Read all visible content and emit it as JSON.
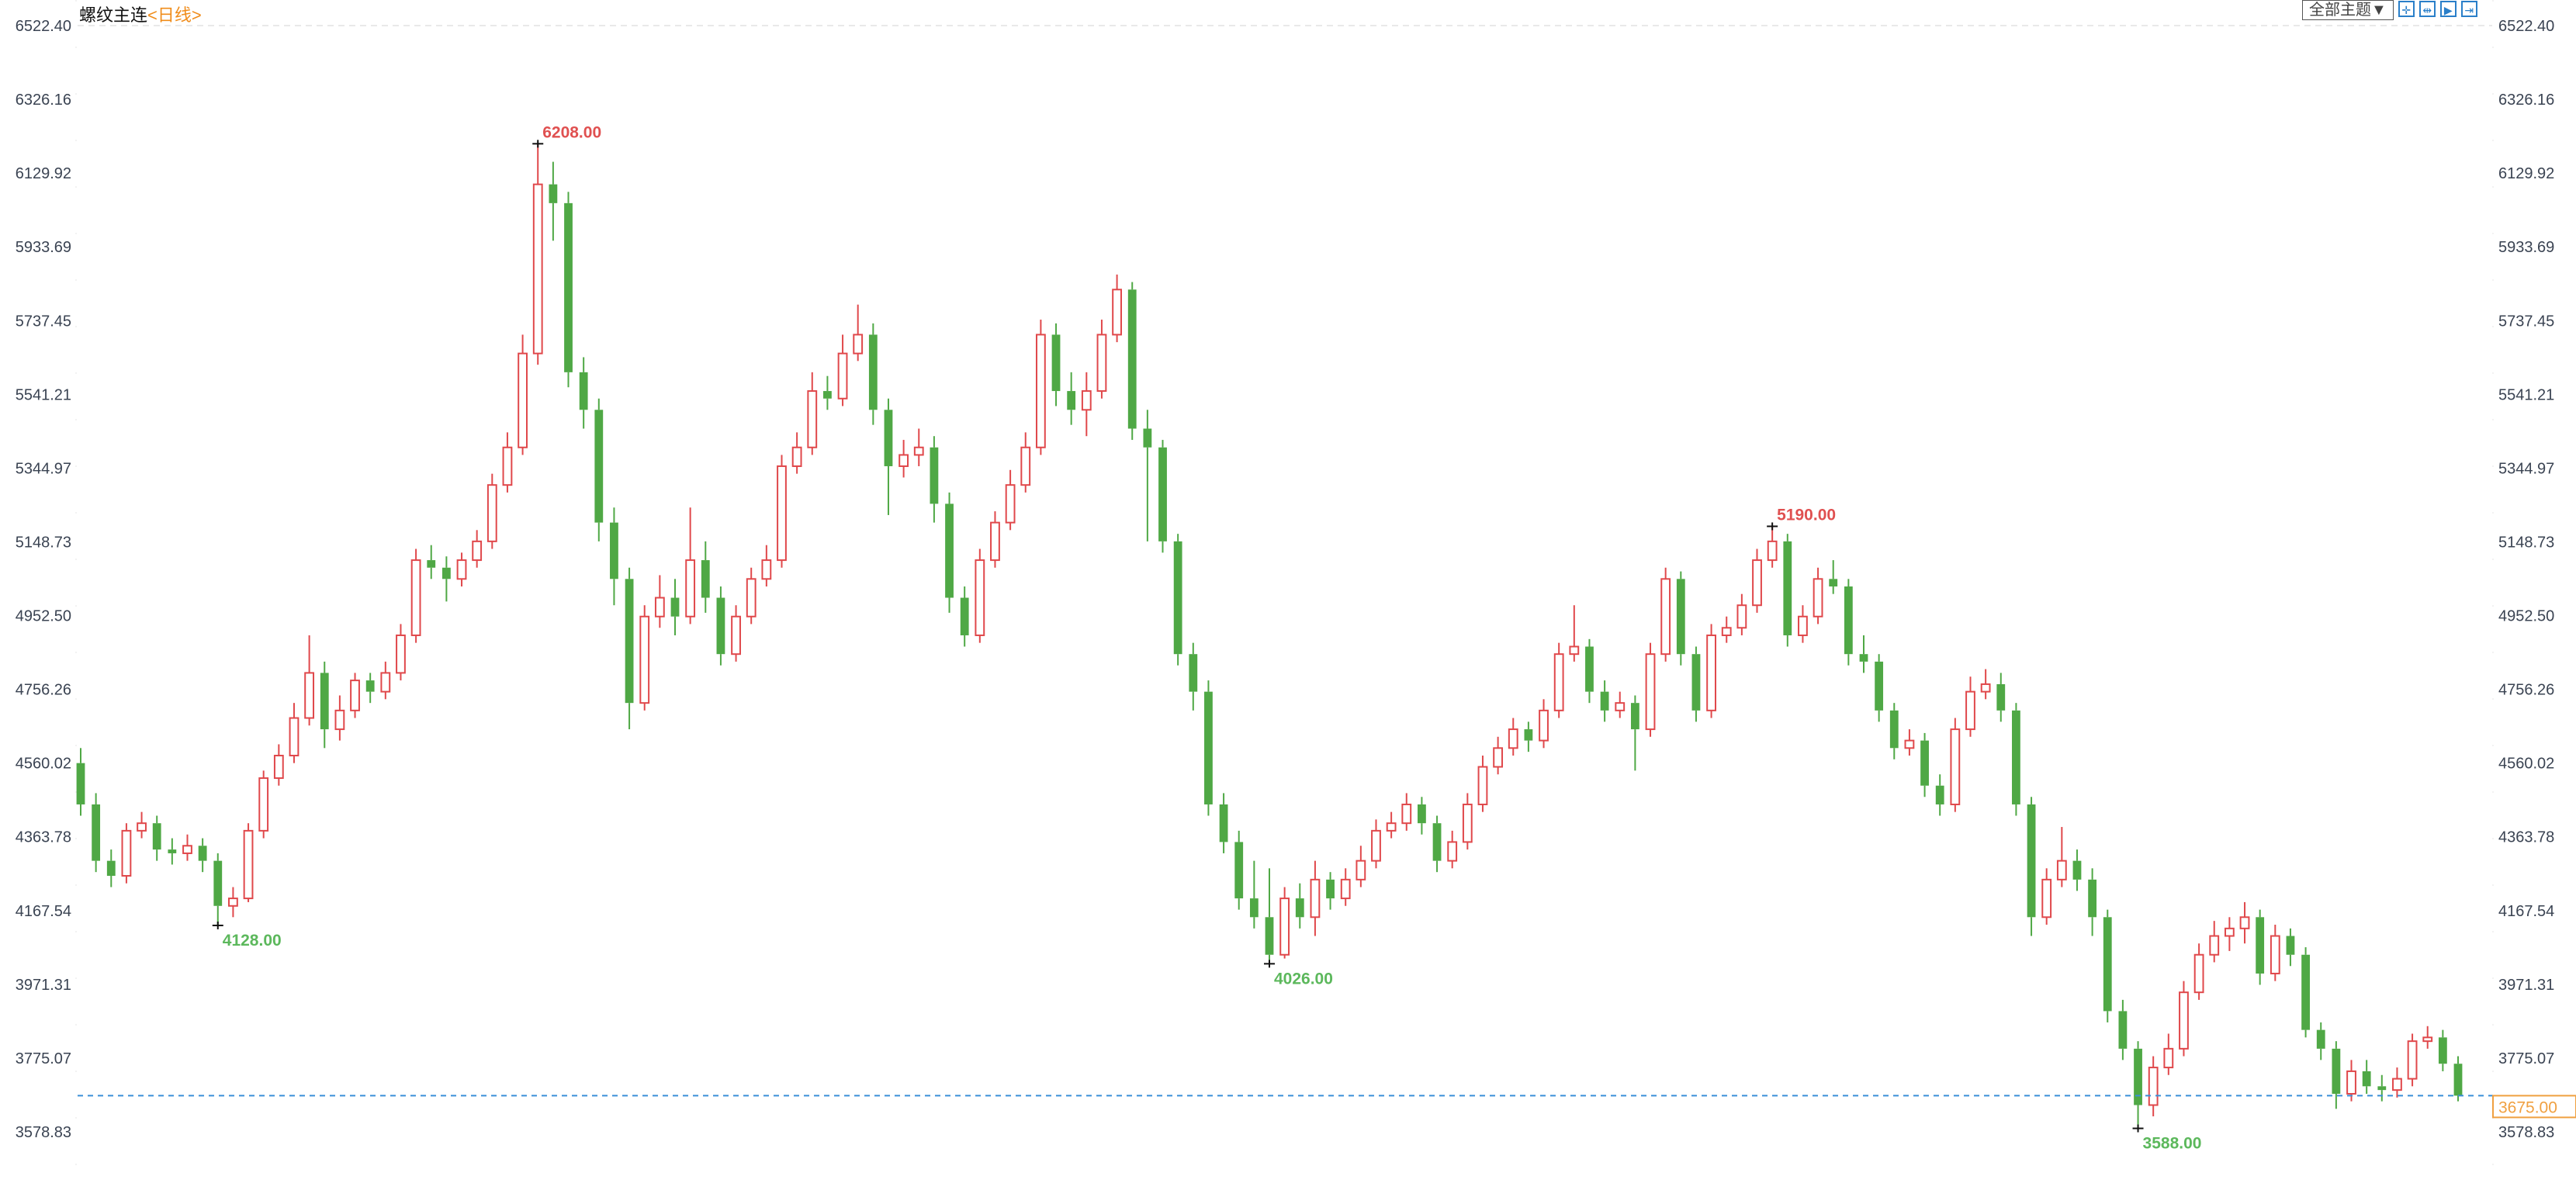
{
  "header": {
    "symbol": "螺纹主连",
    "period": "<日线>"
  },
  "toolbar": {
    "theme_label": "全部主题▼",
    "icons": [
      "crosshair-icon",
      "zoom-fit-icon",
      "play-icon",
      "goto-end-icon"
    ]
  },
  "colors": {
    "up": "#e0484b",
    "down": "#4fa845",
    "last_price": "#f0a040",
    "last_line": "#3a8fd8",
    "high_label": "#e05050",
    "low_label": "#5cb85c"
  },
  "chart_data": {
    "type": "candlestick",
    "title": "螺纹主连",
    "period": "日线",
    "ylim": [
      3578.83,
      6522.4
    ],
    "y_ticks": [
      "6522.40",
      "6326.16",
      "6129.92",
      "5933.69",
      "5737.45",
      "5541.21",
      "5344.97",
      "5148.73",
      "4952.50",
      "4756.26",
      "4560.02",
      "4363.78",
      "4167.54",
      "3971.31",
      "3775.07",
      "3578.83"
    ],
    "last_price": "3675.00",
    "annotations": [
      {
        "label": "6208.00",
        "candle": 30,
        "kind": "high"
      },
      {
        "label": "4128.00",
        "candle": 9,
        "kind": "low"
      },
      {
        "label": "4026.00",
        "candle": 78,
        "kind": "low"
      },
      {
        "label": "5190.00",
        "candle": 111,
        "kind": "high"
      },
      {
        "label": "3588.00",
        "candle": 135,
        "kind": "low"
      }
    ],
    "ohlc": [
      [
        4560,
        4600,
        4420,
        4450
      ],
      [
        4450,
        4480,
        4270,
        4300
      ],
      [
        4300,
        4330,
        4230,
        4260
      ],
      [
        4260,
        4400,
        4240,
        4380
      ],
      [
        4380,
        4430,
        4360,
        4400
      ],
      [
        4400,
        4420,
        4300,
        4330
      ],
      [
        4330,
        4360,
        4290,
        4320
      ],
      [
        4320,
        4370,
        4300,
        4340
      ],
      [
        4340,
        4360,
        4270,
        4300
      ],
      [
        4300,
        4320,
        4128,
        4180
      ],
      [
        4180,
        4230,
        4150,
        4200
      ],
      [
        4200,
        4400,
        4190,
        4380
      ],
      [
        4380,
        4540,
        4360,
        4520
      ],
      [
        4520,
        4610,
        4500,
        4580
      ],
      [
        4580,
        4720,
        4560,
        4680
      ],
      [
        4680,
        4900,
        4660,
        4800
      ],
      [
        4800,
        4830,
        4600,
        4650
      ],
      [
        4650,
        4740,
        4620,
        4700
      ],
      [
        4700,
        4800,
        4680,
        4780
      ],
      [
        4780,
        4800,
        4720,
        4750
      ],
      [
        4750,
        4830,
        4730,
        4800
      ],
      [
        4800,
        4930,
        4780,
        4900
      ],
      [
        4900,
        5130,
        4880,
        5100
      ],
      [
        5100,
        5140,
        5050,
        5080
      ],
      [
        5080,
        5110,
        4990,
        5050
      ],
      [
        5050,
        5120,
        5030,
        5100
      ],
      [
        5100,
        5180,
        5080,
        5150
      ],
      [
        5150,
        5330,
        5130,
        5300
      ],
      [
        5300,
        5440,
        5280,
        5400
      ],
      [
        5400,
        5700,
        5380,
        5650
      ],
      [
        5650,
        6208,
        5620,
        6100
      ],
      [
        6100,
        6160,
        5950,
        6050
      ],
      [
        6050,
        6080,
        5560,
        5600
      ],
      [
        5600,
        5640,
        5450,
        5500
      ],
      [
        5500,
        5530,
        5150,
        5200
      ],
      [
        5200,
        5240,
        4980,
        5050
      ],
      [
        5050,
        5080,
        4650,
        4720
      ],
      [
        4720,
        4980,
        4700,
        4950
      ],
      [
        4950,
        5060,
        4920,
        5000
      ],
      [
        5000,
        5050,
        4900,
        4950
      ],
      [
        4950,
        5240,
        4930,
        5100
      ],
      [
        5100,
        5150,
        4960,
        5000
      ],
      [
        5000,
        5030,
        4820,
        4850
      ],
      [
        4850,
        4980,
        4830,
        4950
      ],
      [
        4950,
        5080,
        4930,
        5050
      ],
      [
        5050,
        5140,
        5030,
        5100
      ],
      [
        5100,
        5380,
        5080,
        5350
      ],
      [
        5350,
        5440,
        5330,
        5400
      ],
      [
        5400,
        5600,
        5380,
        5550
      ],
      [
        5550,
        5590,
        5500,
        5530
      ],
      [
        5530,
        5700,
        5510,
        5650
      ],
      [
        5650,
        5780,
        5630,
        5700
      ],
      [
        5700,
        5730,
        5460,
        5500
      ],
      [
        5500,
        5530,
        5220,
        5350
      ],
      [
        5350,
        5420,
        5320,
        5380
      ],
      [
        5380,
        5450,
        5350,
        5400
      ],
      [
        5400,
        5430,
        5200,
        5250
      ],
      [
        5250,
        5280,
        4960,
        5000
      ],
      [
        5000,
        5030,
        4870,
        4900
      ],
      [
        4900,
        5130,
        4880,
        5100
      ],
      [
        5100,
        5230,
        5080,
        5200
      ],
      [
        5200,
        5340,
        5180,
        5300
      ],
      [
        5300,
        5440,
        5280,
        5400
      ],
      [
        5400,
        5740,
        5380,
        5700
      ],
      [
        5700,
        5730,
        5510,
        5550
      ],
      [
        5550,
        5600,
        5460,
        5500
      ],
      [
        5500,
        5600,
        5430,
        5550
      ],
      [
        5550,
        5740,
        5530,
        5700
      ],
      [
        5700,
        5860,
        5680,
        5820
      ],
      [
        5820,
        5840,
        5420,
        5450
      ],
      [
        5450,
        5500,
        5150,
        5400
      ],
      [
        5400,
        5420,
        5120,
        5150
      ],
      [
        5150,
        5170,
        4820,
        4850
      ],
      [
        4850,
        4880,
        4700,
        4750
      ],
      [
        4750,
        4780,
        4420,
        4450
      ],
      [
        4450,
        4480,
        4320,
        4350
      ],
      [
        4350,
        4380,
        4170,
        4200
      ],
      [
        4200,
        4300,
        4120,
        4150
      ],
      [
        4150,
        4280,
        4026,
        4050
      ],
      [
        4050,
        4230,
        4040,
        4200
      ],
      [
        4200,
        4240,
        4120,
        4150
      ],
      [
        4150,
        4300,
        4100,
        4250
      ],
      [
        4250,
        4270,
        4170,
        4200
      ],
      [
        4200,
        4280,
        4180,
        4250
      ],
      [
        4250,
        4340,
        4230,
        4300
      ],
      [
        4300,
        4410,
        4280,
        4380
      ],
      [
        4380,
        4430,
        4360,
        4400
      ],
      [
        4400,
        4480,
        4380,
        4450
      ],
      [
        4450,
        4470,
        4370,
        4400
      ],
      [
        4400,
        4420,
        4270,
        4300
      ],
      [
        4300,
        4380,
        4280,
        4350
      ],
      [
        4350,
        4480,
        4330,
        4450
      ],
      [
        4450,
        4580,
        4430,
        4550
      ],
      [
        4550,
        4630,
        4530,
        4600
      ],
      [
        4600,
        4680,
        4580,
        4650
      ],
      [
        4650,
        4670,
        4590,
        4620
      ],
      [
        4620,
        4730,
        4600,
        4700
      ],
      [
        4700,
        4880,
        4680,
        4850
      ],
      [
        4850,
        4980,
        4830,
        4870
      ],
      [
        4870,
        4890,
        4720,
        4750
      ],
      [
        4750,
        4780,
        4670,
        4700
      ],
      [
        4700,
        4750,
        4680,
        4720
      ],
      [
        4720,
        4740,
        4540,
        4650
      ],
      [
        4650,
        4880,
        4630,
        4850
      ],
      [
        4850,
        5080,
        4830,
        5050
      ],
      [
        5050,
        5070,
        4820,
        4850
      ],
      [
        4850,
        4870,
        4670,
        4700
      ],
      [
        4700,
        4930,
        4680,
        4900
      ],
      [
        4900,
        4950,
        4880,
        4920
      ],
      [
        4920,
        5010,
        4900,
        4980
      ],
      [
        4980,
        5130,
        4960,
        5100
      ],
      [
        5100,
        5190,
        5080,
        5150
      ],
      [
        5150,
        5170,
        4870,
        4900
      ],
      [
        4900,
        4980,
        4880,
        4950
      ],
      [
        4950,
        5080,
        4930,
        5050
      ],
      [
        5050,
        5100,
        5010,
        5030
      ],
      [
        5030,
        5050,
        4820,
        4850
      ],
      [
        4850,
        4900,
        4800,
        4830
      ],
      [
        4830,
        4850,
        4670,
        4700
      ],
      [
        4700,
        4720,
        4570,
        4600
      ],
      [
        4600,
        4650,
        4580,
        4620
      ],
      [
        4620,
        4640,
        4470,
        4500
      ],
      [
        4500,
        4530,
        4420,
        4450
      ],
      [
        4450,
        4680,
        4430,
        4650
      ],
      [
        4650,
        4790,
        4630,
        4750
      ],
      [
        4750,
        4810,
        4730,
        4770
      ],
      [
        4770,
        4800,
        4670,
        4700
      ],
      [
        4700,
        4720,
        4420,
        4450
      ],
      [
        4450,
        4470,
        4100,
        4150
      ],
      [
        4150,
        4280,
        4130,
        4250
      ],
      [
        4250,
        4390,
        4230,
        4300
      ],
      [
        4300,
        4330,
        4220,
        4250
      ],
      [
        4250,
        4280,
        4100,
        4150
      ],
      [
        4150,
        4170,
        3870,
        3900
      ],
      [
        3900,
        3930,
        3770,
        3800
      ],
      [
        3800,
        3820,
        3588,
        3650
      ],
      [
        3650,
        3780,
        3620,
        3750
      ],
      [
        3750,
        3840,
        3730,
        3800
      ],
      [
        3800,
        3980,
        3780,
        3950
      ],
      [
        3950,
        4080,
        3930,
        4050
      ],
      [
        4050,
        4140,
        4030,
        4100
      ],
      [
        4100,
        4150,
        4060,
        4120
      ],
      [
        4120,
        4190,
        4080,
        4150
      ],
      [
        4150,
        4170,
        3970,
        4000
      ],
      [
        4000,
        4130,
        3980,
        4100
      ],
      [
        4100,
        4120,
        4020,
        4050
      ],
      [
        4050,
        4070,
        3830,
        3850
      ],
      [
        3850,
        3870,
        3770,
        3800
      ],
      [
        3800,
        3820,
        3640,
        3680
      ],
      [
        3680,
        3770,
        3660,
        3740
      ],
      [
        3740,
        3770,
        3680,
        3700
      ],
      [
        3700,
        3730,
        3660,
        3690
      ],
      [
        3690,
        3750,
        3670,
        3720
      ],
      [
        3720,
        3840,
        3700,
        3820
      ],
      [
        3820,
        3860,
        3800,
        3830
      ],
      [
        3830,
        3850,
        3740,
        3760
      ],
      [
        3760,
        3780,
        3660,
        3675
      ]
    ]
  }
}
